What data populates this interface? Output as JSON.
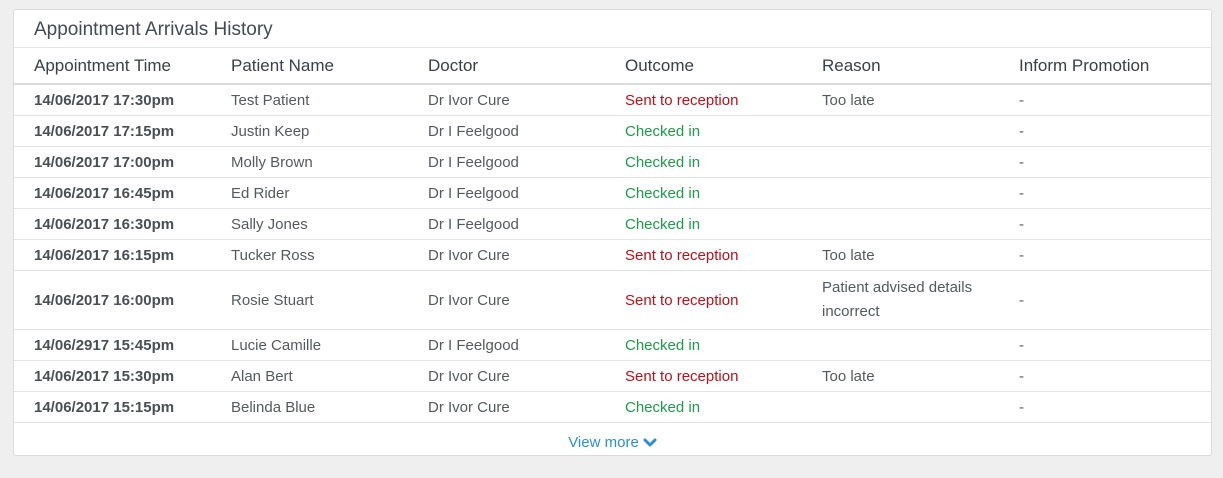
{
  "panel": {
    "title": "Appointment Arrivals History"
  },
  "table": {
    "headers": [
      "Appointment Time",
      "Patient Name",
      "Doctor",
      "Outcome",
      "Reason",
      "Inform Promotion"
    ],
    "rows": [
      {
        "time": "14/06/2017 17:30pm",
        "patient": "Test Patient",
        "doctor": "Dr Ivor Cure",
        "outcome": "Sent to reception",
        "reason": "Too late",
        "promotion": "-"
      },
      {
        "time": "14/06/2017 17:15pm",
        "patient": "Justin Keep",
        "doctor": "Dr I Feelgood",
        "outcome": "Checked in",
        "reason": "",
        "promotion": "-"
      },
      {
        "time": "14/06/2017 17:00pm",
        "patient": "Molly Brown",
        "doctor": "Dr I Feelgood",
        "outcome": "Checked in",
        "reason": "",
        "promotion": "-"
      },
      {
        "time": "14/06/2017 16:45pm",
        "patient": "Ed Rider",
        "doctor": "Dr I Feelgood",
        "outcome": "Checked in",
        "reason": "",
        "promotion": "-"
      },
      {
        "time": "14/06/2017 16:30pm",
        "patient": "Sally Jones",
        "doctor": "Dr I Feelgood",
        "outcome": "Checked in",
        "reason": "",
        "promotion": "-"
      },
      {
        "time": "14/06/2017 16:15pm",
        "patient": "Tucker Ross",
        "doctor": "Dr Ivor Cure",
        "outcome": "Sent to reception",
        "reason": "Too late",
        "promotion": "-"
      },
      {
        "time": "14/06/2017 16:00pm",
        "patient": "Rosie Stuart",
        "doctor": "Dr Ivor Cure",
        "outcome": "Sent to reception",
        "reason": "Patient advised details incorrect",
        "promotion": "-"
      },
      {
        "time": "14/06/2917 15:45pm",
        "patient": "Lucie Camille",
        "doctor": "Dr I Feelgood",
        "outcome": "Checked in",
        "reason": "",
        "promotion": "-"
      },
      {
        "time": "14/06/2017 15:30pm",
        "patient": "Alan Bert",
        "doctor": "Dr Ivor Cure",
        "outcome": "Sent to reception",
        "reason": "Too late",
        "promotion": "-"
      },
      {
        "time": "14/06/2017 15:15pm",
        "patient": "Belinda Blue",
        "doctor": "Dr Ivor Cure",
        "outcome": "Checked in",
        "reason": "",
        "promotion": "-"
      }
    ]
  },
  "footer": {
    "view_more_label": "View more",
    "view_more_icon": "chevron-down-icon"
  },
  "colors": {
    "sent_to_reception": "#b5121b",
    "checked_in": "#1f9a4a",
    "link": "#2e8fd0"
  }
}
